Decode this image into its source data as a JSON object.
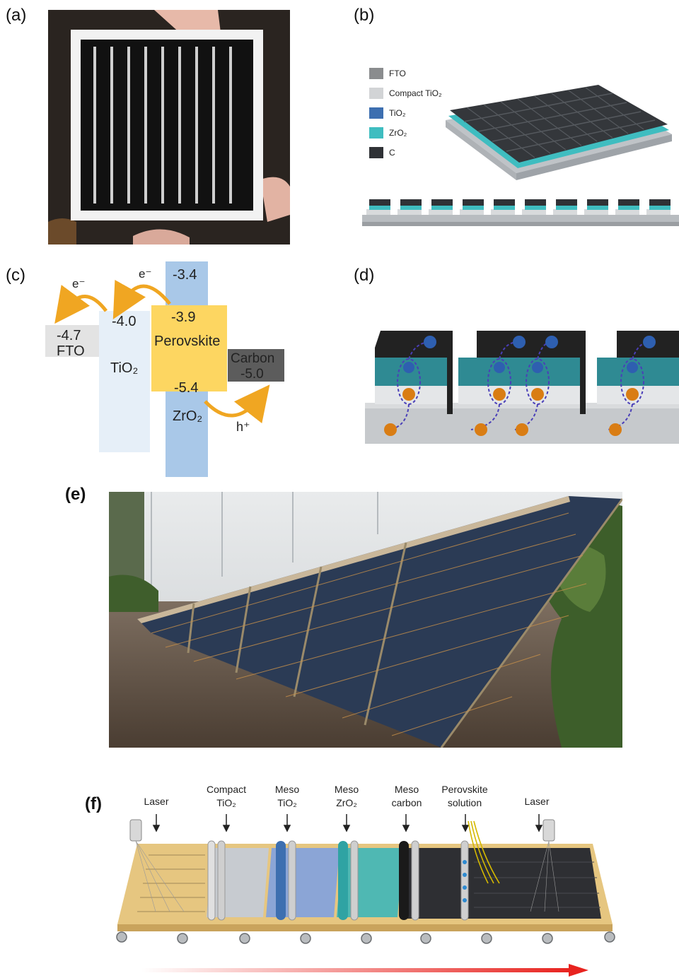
{
  "panels": {
    "a": {
      "label": "(a)"
    },
    "b": {
      "label": "(b)",
      "legend": [
        {
          "name": "FTO",
          "color": "#8a8c8e"
        },
        {
          "name": "Compact TiO₂",
          "color": "#d2d4d6"
        },
        {
          "name": "TiO₂",
          "color": "#3d6fb0"
        },
        {
          "name": "ZrO₂",
          "color": "#3fbdc0"
        },
        {
          "name": "C",
          "color": "#2f3236"
        }
      ]
    },
    "c": {
      "label": "(c)",
      "electron_left": "e⁻",
      "electron_right": "e⁻",
      "hole": "h⁺",
      "fto_value": "-4.7",
      "fto_label": "FTO",
      "tio2_value": "-4.0",
      "tio2_label": "TiO₂",
      "zro2_top": "-3.4",
      "zro2_label": "ZrO₂",
      "perov_top": "-3.9",
      "perov_label": "Perovskite",
      "perov_bottom": "-5.4",
      "carbon_label": "Carbon",
      "carbon_value": "-5.0"
    },
    "d": {
      "label": "(d)",
      "hole_symbol": "h",
      "electron_symbol": "e"
    },
    "e": {
      "label": "(e)"
    },
    "f": {
      "label": "(f)",
      "stages": [
        {
          "line1": "Laser",
          "line2": ""
        },
        {
          "line1": "Compact",
          "line2": "TiO₂"
        },
        {
          "line1": "Meso",
          "line2": "TiO₂"
        },
        {
          "line1": "Meso",
          "line2": "ZrO₂"
        },
        {
          "line1": "Meso",
          "line2": "carbon"
        },
        {
          "line1": "Perovskite",
          "line2": "solution"
        },
        {
          "line1": "Laser",
          "line2": ""
        }
      ]
    }
  },
  "colors": {
    "fto": "#e3e3e3",
    "tio2": "#e6eff8",
    "zro2": "#a9c8e8",
    "perovskite": "#fdd661",
    "carbon": "#5c5c5c",
    "arrow": "#f0a622",
    "direction_arrow": "#e8231f"
  }
}
